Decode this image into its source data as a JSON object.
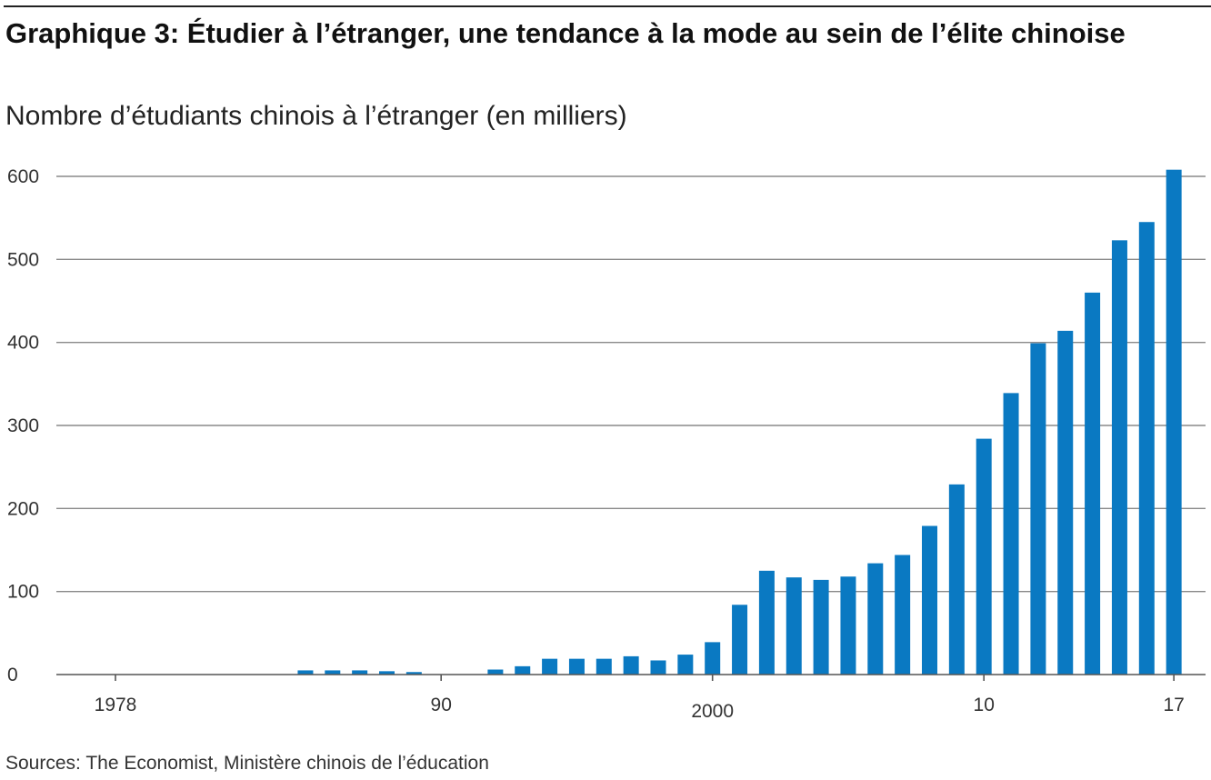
{
  "header": {
    "title": "Graphique 3: Étudier à l’étranger, une tendance à la mode au sein de l’élite chinoise",
    "subtitle": "Nombre d’étudiants chinois à l’étranger (en milliers)"
  },
  "footer": {
    "source": "Sources: The Economist, Ministère chinois de l’éducation"
  },
  "colors": {
    "bar": "#0a79c2",
    "grid": "#8a8a8a",
    "axis": "#555555",
    "rule": "#222222"
  },
  "chart_data": {
    "type": "bar",
    "title": "Graphique 3: Étudier à l’étranger, une tendance à la mode au sein de l’élite chinoise",
    "subtitle": "Nombre d’étudiants chinois à l’étranger (en milliers)",
    "xlabel": "",
    "ylabel": "",
    "ylim": [
      0,
      600
    ],
    "yticks": [
      0,
      100,
      200,
      300,
      400,
      500,
      600
    ],
    "grid": true,
    "legend": "none",
    "xticks": [
      {
        "year": 1978,
        "label": "1978"
      },
      {
        "year": 1990,
        "label": "90"
      },
      {
        "year": 2000,
        "label": "2000"
      },
      {
        "year": 2010,
        "label": "10"
      },
      {
        "year": 2017,
        "label": "17"
      }
    ],
    "categories": [
      1978,
      1979,
      1980,
      1981,
      1982,
      1983,
      1984,
      1985,
      1986,
      1987,
      1988,
      1989,
      1990,
      1991,
      1992,
      1993,
      1994,
      1995,
      1996,
      1997,
      1998,
      1999,
      2000,
      2001,
      2002,
      2003,
      2004,
      2005,
      2006,
      2007,
      2008,
      2009,
      2010,
      2011,
      2012,
      2013,
      2014,
      2015,
      2016,
      2017
    ],
    "values": [
      0,
      0,
      0,
      0,
      0,
      0,
      0,
      5,
      5,
      5,
      4,
      3,
      0,
      0,
      6,
      10,
      19,
      19,
      19,
      22,
      17,
      24,
      39,
      84,
      125,
      117,
      114,
      118,
      134,
      144,
      179,
      229,
      284,
      339,
      399,
      414,
      460,
      523,
      545,
      608
    ]
  }
}
